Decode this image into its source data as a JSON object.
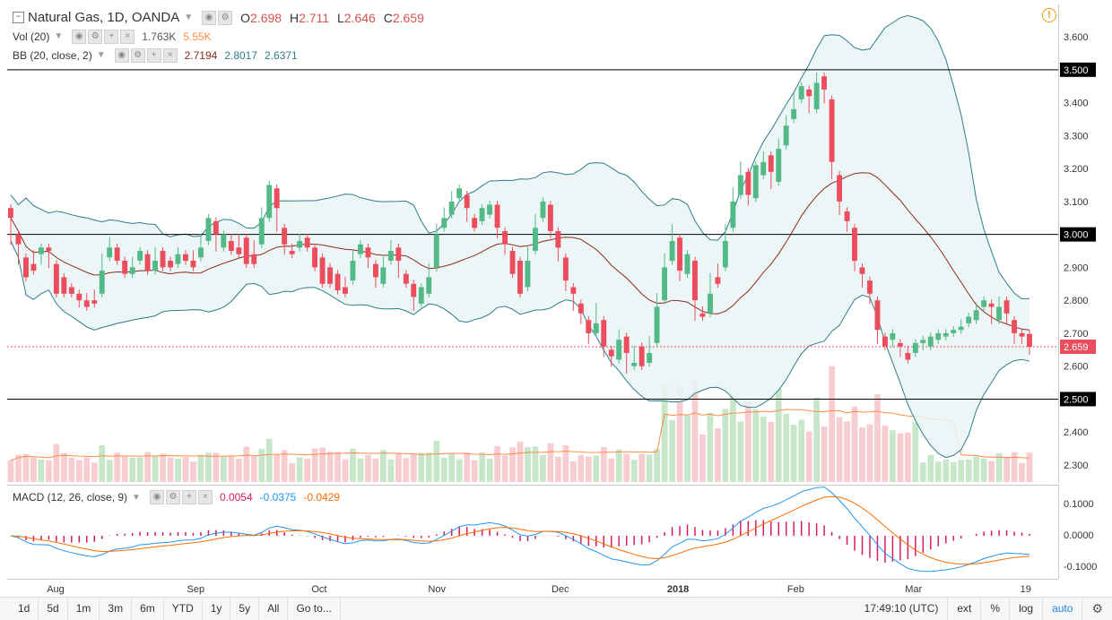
{
  "header": {
    "symbol_title": "Natural Gas, 1D, OANDA",
    "o_label": "O",
    "o": "2.698",
    "h_label": "H",
    "h": "2.711",
    "l_label": "L",
    "l": "2.646",
    "c_label": "C",
    "c": "2.659"
  },
  "indicators": {
    "vol": {
      "name": "Vol (20)",
      "v1": "1.763K",
      "v2": "5.55K"
    },
    "bb": {
      "name": "BB (20, close, 2)",
      "v1": "2.7194",
      "v2": "2.8017",
      "v3": "2.6371"
    },
    "macd": {
      "name": "MACD (12, 26, close, 9)",
      "v1": "0.0054",
      "v2": "-0.0375",
      "v3": "-0.0429"
    }
  },
  "colors": {
    "up": "#53b987",
    "down": "#eb4d5c",
    "bb_band": "#2e7d8c",
    "bb_basis": "#8b2b1e",
    "bb_fill": "#eaf5f5",
    "macd_line": "#2196f3",
    "signal_line": "#ff6d00",
    "vol_up": "#c8e6c9",
    "vol_down": "#f7cdd1",
    "vol_ma": "#ff8c42",
    "price_line": "#eb4d5c",
    "accent": "#1e88e5"
  },
  "price_axis": {
    "ticks": [
      "3.600",
      "3.500",
      "3.400",
      "3.300",
      "3.200",
      "3.100",
      "3.000",
      "2.900",
      "2.800",
      "2.700",
      "2.659",
      "2.600",
      "2.500",
      "2.400",
      "2.300"
    ],
    "horizontal_levels": [
      "3.500",
      "3.000",
      "2.500"
    ],
    "last_price": "2.659"
  },
  "macd_axis": {
    "ticks": [
      "0.1000",
      "0.0000",
      "-0.1000"
    ]
  },
  "time_axis": {
    "labels": [
      "Aug",
      "Sep",
      "Oct",
      "Nov",
      "Dec",
      "2018",
      "Feb",
      "Mar",
      "19"
    ]
  },
  "bottom_bar": {
    "ranges": [
      "1d",
      "5d",
      "1m",
      "3m",
      "6m",
      "YTD",
      "1y",
      "5y",
      "All"
    ],
    "goto": "Go to...",
    "clock": "17:49:10 (UTC)",
    "options": [
      "ext",
      "%",
      "log",
      "auto"
    ],
    "active_option": "auto",
    "settings_icon": "gear-icon"
  },
  "icons": {
    "collapse": "collapse-icon",
    "warning": "warning-icon",
    "eye": "eye-icon",
    "settings": "settings-icon",
    "add": "plus-icon",
    "remove": "close-icon",
    "dropdown": "chevron-down-icon"
  },
  "chart_data": {
    "type": "candlestick",
    "title": "Natural Gas, 1D, OANDA",
    "x_labels": [
      "Aug",
      "Sep",
      "Oct",
      "Nov",
      "Dec",
      "2018",
      "Feb",
      "Mar",
      "19"
    ],
    "ylim": [
      2.27,
      3.66
    ],
    "last_close": 2.659,
    "candles": [
      [
        3.08,
        3.05,
        2.98
      ],
      [
        3.0,
        2.97,
        2.92
      ],
      [
        2.93,
        2.87,
        2.91
      ],
      [
        2.91,
        2.89,
        2.94
      ],
      [
        2.94,
        2.96,
        2.92
      ],
      [
        2.96,
        2.95,
        2.91
      ],
      [
        2.91,
        2.82,
        2.88
      ],
      [
        2.87,
        2.82,
        2.85
      ],
      [
        2.84,
        2.82,
        2.83
      ],
      [
        2.82,
        2.8,
        2.79
      ],
      [
        2.8,
        2.78,
        2.81
      ],
      [
        2.8,
        2.79,
        2.82
      ],
      [
        2.82,
        2.89,
        2.93
      ],
      [
        2.93,
        2.96,
        2.98
      ],
      [
        2.96,
        2.92,
        2.94
      ],
      [
        2.92,
        2.88,
        2.91
      ],
      [
        2.88,
        2.9,
        2.92
      ],
      [
        2.92,
        2.95,
        2.94
      ],
      [
        2.94,
        2.89,
        2.9
      ],
      [
        2.89,
        2.92,
        2.95
      ],
      [
        2.95,
        2.9,
        2.92
      ],
      [
        2.92,
        2.9,
        2.92
      ],
      [
        2.91,
        2.94,
        2.95
      ],
      [
        2.94,
        2.92,
        2.93
      ],
      [
        2.92,
        2.9,
        2.94
      ],
      [
        2.93,
        2.96,
        2.99
      ],
      [
        2.98,
        3.05,
        3.02
      ],
      [
        3.04,
        3.0,
        2.96
      ],
      [
        2.96,
        3.0,
        2.98
      ],
      [
        2.98,
        2.95,
        2.99
      ],
      [
        2.96,
        2.94,
        2.99
      ],
      [
        2.99,
        2.91,
        2.94
      ],
      [
        2.94,
        2.91,
        2.97
      ],
      [
        2.97,
        3.05,
        3.07
      ],
      [
        3.05,
        3.15,
        3.14
      ],
      [
        3.14,
        3.08,
        3.02
      ],
      [
        3.02,
        2.97,
        2.95
      ],
      [
        2.95,
        2.94,
        2.96
      ],
      [
        2.96,
        2.98,
        2.99
      ],
      [
        2.99,
        2.96,
        2.97
      ],
      [
        2.96,
        2.9,
        2.93
      ],
      [
        2.93,
        2.85,
        2.9
      ],
      [
        2.9,
        2.85,
        2.88
      ],
      [
        2.88,
        2.83,
        2.86
      ],
      [
        2.84,
        2.82,
        2.86
      ],
      [
        2.86,
        2.92,
        2.94
      ],
      [
        2.94,
        2.97,
        2.95
      ],
      [
        2.96,
        2.93,
        2.91
      ],
      [
        2.91,
        2.87,
        2.85
      ],
      [
        2.85,
        2.9,
        2.92
      ],
      [
        2.92,
        2.95,
        2.97
      ],
      [
        2.96,
        2.92,
        2.88
      ],
      [
        2.88,
        2.85,
        2.87
      ],
      [
        2.85,
        2.81,
        2.78
      ],
      [
        2.79,
        2.84,
        2.82
      ],
      [
        2.82,
        2.87,
        2.9
      ],
      [
        2.9,
        3.0,
        3.02
      ],
      [
        3.02,
        3.05,
        3.07
      ],
      [
        3.06,
        3.1,
        3.12
      ],
      [
        3.11,
        3.14,
        3.12
      ],
      [
        3.12,
        3.08,
        3.05
      ],
      [
        3.05,
        3.02,
        3.04
      ],
      [
        3.04,
        3.08,
        3.06
      ],
      [
        3.06,
        3.09,
        3.08
      ],
      [
        3.09,
        3.02,
        3.0
      ],
      [
        3.01,
        2.97,
        2.95
      ],
      [
        2.95,
        2.88,
        2.92
      ],
      [
        2.92,
        2.82,
        2.84
      ],
      [
        2.84,
        2.92,
        2.95
      ],
      [
        2.95,
        3.02,
        3.05
      ],
      [
        3.05,
        3.1,
        3.08
      ],
      [
        3.09,
        3.01,
        3.0
      ],
      [
        3.01,
        2.96,
        2.93
      ],
      [
        2.93,
        2.86,
        2.84
      ],
      [
        2.84,
        2.82,
        2.78
      ],
      [
        2.79,
        2.76,
        2.74
      ],
      [
        2.74,
        2.7,
        2.68
      ],
      [
        2.7,
        2.73,
        2.78
      ],
      [
        2.74,
        2.66,
        2.64
      ],
      [
        2.65,
        2.63,
        2.61
      ],
      [
        2.62,
        2.68,
        2.7
      ],
      [
        2.69,
        2.64,
        2.59
      ],
      [
        2.6,
        2.61,
        2.65
      ],
      [
        2.66,
        2.6,
        2.62
      ],
      [
        2.61,
        2.64,
        2.68
      ],
      [
        2.67,
        2.78,
        2.81
      ],
      [
        2.8,
        2.9,
        2.93
      ],
      [
        2.92,
        2.98,
        3.02
      ],
      [
        2.99,
        2.89,
        2.87
      ],
      [
        2.88,
        2.94,
        2.92
      ],
      [
        2.92,
        2.8,
        2.75
      ],
      [
        2.76,
        2.75,
        2.77
      ],
      [
        2.76,
        2.82,
        2.87
      ],
      [
        2.87,
        2.85,
        2.9
      ],
      [
        2.9,
        2.98,
        3.02
      ],
      [
        3.02,
        3.1,
        3.13
      ],
      [
        3.12,
        3.18,
        3.21
      ],
      [
        3.19,
        3.12,
        3.1
      ],
      [
        3.11,
        3.21,
        3.18
      ],
      [
        3.18,
        3.22,
        3.24
      ],
      [
        3.24,
        3.19,
        3.15
      ],
      [
        3.16,
        3.26,
        3.28
      ],
      [
        3.27,
        3.33,
        3.35
      ],
      [
        3.35,
        3.38,
        3.42
      ],
      [
        3.41,
        3.45,
        3.44
      ],
      [
        3.44,
        3.42,
        3.38
      ],
      [
        3.38,
        3.46,
        3.48
      ],
      [
        3.48,
        3.44,
        3.41
      ],
      [
        3.41,
        3.22,
        3.18
      ],
      [
        3.18,
        3.1,
        3.07
      ],
      [
        3.07,
        3.04,
        3.02
      ],
      [
        3.02,
        2.92,
        2.9
      ],
      [
        2.9,
        2.88,
        2.85
      ],
      [
        2.86,
        2.82,
        2.8
      ],
      [
        2.8,
        2.71,
        2.68
      ],
      [
        2.69,
        2.66,
        2.68
      ],
      [
        2.68,
        2.7,
        2.67
      ],
      [
        2.67,
        2.66,
        2.64
      ],
      [
        2.64,
        2.62,
        2.65
      ],
      [
        2.64,
        2.67,
        2.66
      ],
      [
        2.67,
        2.68,
        2.66
      ],
      [
        2.66,
        2.69,
        2.68
      ],
      [
        2.68,
        2.7,
        2.69
      ],
      [
        2.69,
        2.7,
        2.7
      ],
      [
        2.7,
        2.71,
        2.71
      ],
      [
        2.71,
        2.72,
        2.73
      ],
      [
        2.73,
        2.75,
        2.74
      ],
      [
        2.74,
        2.77,
        2.78
      ],
      [
        2.78,
        2.8,
        2.79
      ],
      [
        2.79,
        2.78,
        2.74
      ],
      [
        2.74,
        2.78,
        2.8
      ],
      [
        2.8,
        2.76,
        2.74
      ],
      [
        2.74,
        2.7,
        2.68
      ],
      [
        2.7,
        2.69,
        2.68
      ],
      [
        2.698,
        2.659,
        2.646
      ]
    ]
  }
}
